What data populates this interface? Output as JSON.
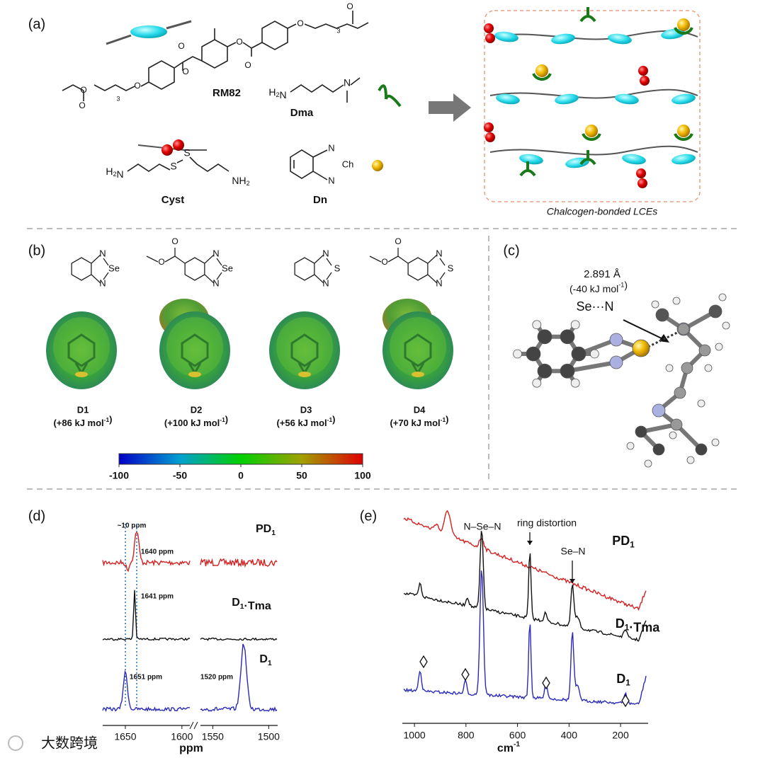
{
  "panel_a": {
    "label": "(a)",
    "rm82": {
      "name": "RM82",
      "atoms": [
        "O",
        "O",
        "O",
        "O",
        "O",
        "O",
        "O",
        "O",
        "O"
      ],
      "repeats": [
        "3",
        "3"
      ]
    },
    "dma": {
      "name": "Dma",
      "groups": [
        [
          "H",
          {
            "sub": "2"
          },
          "N"
        ],
        "N"
      ]
    },
    "cyst": {
      "name": "Cyst",
      "groups": [
        [
          "H",
          {
            "sub": "2"
          },
          "N"
        ],
        "S",
        "S",
        [
          "NH",
          {
            "sub": "2"
          }
        ]
      ]
    },
    "dn": {
      "name": "Dn",
      "atoms": [
        "N",
        "Ch",
        "N"
      ]
    },
    "network_caption": "Chalcogen-bonded LCEs"
  },
  "panel_b": {
    "label": "(b)",
    "molecules": [
      {
        "name": "D1",
        "energy": [
          "(+86 kJ mol",
          {
            "sup": "-1"
          },
          ")"
        ],
        "atoms": [
          "N",
          "Se",
          "N"
        ],
        "ester": []
      },
      {
        "name": "D2",
        "energy": [
          "(+100 kJ mol",
          {
            "sup": "-1"
          },
          ")"
        ],
        "atoms": [
          "N",
          "Se",
          "N"
        ],
        "ester": [
          "O",
          "O"
        ]
      },
      {
        "name": "D3",
        "energy": [
          "(+56 kJ mol",
          {
            "sup": "-1"
          },
          ")"
        ],
        "atoms": [
          "N",
          "S",
          "N"
        ],
        "ester": []
      },
      {
        "name": "D4",
        "energy": [
          "(+70 kJ mol",
          {
            "sup": "-1"
          },
          ")"
        ],
        "atoms": [
          "N",
          "S",
          "N"
        ],
        "ester": [
          "O",
          "O"
        ]
      }
    ],
    "colorbar": {
      "lim": [
        -100,
        100
      ],
      "ticks": [
        -100,
        -50,
        0,
        50,
        100
      ]
    }
  },
  "panel_c": {
    "label": "(c)",
    "distance": "2.891 Å",
    "energy": [
      "(-40 kJ mol",
      {
        "sup": "-1"
      },
      ")"
    ],
    "contact": "Se···N"
  },
  "panel_d": {
    "label": "(d)",
    "shift_note": "~10 ppm",
    "traces": [
      {
        "name": [
          "PD",
          {
            "sub": "1"
          }
        ],
        "color": "#d42020",
        "peaks": [
          "1640 ppm"
        ]
      },
      {
        "name": [
          "D",
          {
            "sub": "1"
          },
          "·Tma"
        ],
        "color": "#111111",
        "peaks": [
          "1641 ppm"
        ]
      },
      {
        "name": [
          "D",
          {
            "sub": "1"
          }
        ],
        "color": "#2a2ab8",
        "peaks": [
          "1651 ppm",
          "1520 ppm"
        ]
      }
    ],
    "axis_segments": [
      {
        "xlim": [
          1670,
          1593
        ],
        "xticks": [
          1650,
          1600
        ]
      },
      {
        "xlim": [
          1561,
          1492
        ],
        "xticks": [
          1550,
          1500
        ]
      }
    ],
    "xlabel": "ppm"
  },
  "panel_e": {
    "label": "(e)",
    "annotations": [
      "N–Se–N",
      "ring distortion",
      "Se–N"
    ],
    "traces": [
      {
        "name": [
          "PD",
          {
            "sub": "1"
          }
        ],
        "color": "#d42020"
      },
      {
        "name": [
          "D",
          {
            "sub": "1"
          },
          "·Tma"
        ],
        "color": "#111111"
      },
      {
        "name": [
          "D",
          {
            "sub": "1"
          }
        ],
        "color": "#2a2ab8"
      }
    ],
    "xlim": [
      1047,
      93
    ],
    "xticks": [
      1000,
      800,
      600,
      400,
      200
    ],
    "xlabel": [
      "cm",
      {
        "sup": "-1"
      }
    ]
  },
  "watermark": "大数跨境"
}
